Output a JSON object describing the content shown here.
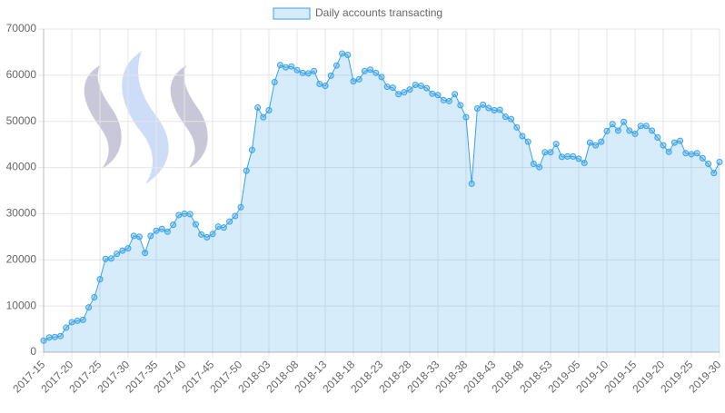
{
  "chart_data": {
    "type": "line",
    "categories": [
      "2017-15",
      null,
      null,
      null,
      null,
      "2017-20",
      null,
      null,
      null,
      null,
      "2017-25",
      null,
      null,
      null,
      null,
      "2017-30",
      null,
      null,
      null,
      null,
      "2017-35",
      null,
      null,
      null,
      null,
      "2017-40",
      null,
      null,
      null,
      null,
      "2017-45",
      null,
      null,
      null,
      null,
      "2017-50",
      null,
      null,
      null,
      null,
      "2018-03",
      null,
      null,
      null,
      null,
      "2018-08",
      null,
      null,
      null,
      null,
      "2018-13",
      null,
      null,
      null,
      null,
      "2018-18",
      null,
      null,
      null,
      null,
      "2018-23",
      null,
      null,
      null,
      null,
      "2018-28",
      null,
      null,
      null,
      null,
      "2018-33",
      null,
      null,
      null,
      null,
      "2018-38",
      null,
      null,
      null,
      null,
      "2018-43",
      null,
      null,
      null,
      null,
      "2018-48",
      null,
      null,
      null,
      null,
      "2018-53",
      null,
      null,
      null,
      null,
      "2019-05",
      null,
      null,
      null,
      null,
      "2019-10",
      null,
      null,
      null,
      null,
      "2019-15",
      null,
      null,
      null,
      null,
      "2019-20",
      null,
      null,
      null,
      null,
      "2019-25",
      null,
      null,
      null,
      null,
      "2019-30"
    ],
    "series": [
      {
        "name": "Daily accounts transacting",
        "color": "#36a2eb",
        "values": [
          2500,
          3200,
          3300,
          3500,
          5300,
          6500,
          6800,
          7000,
          9700,
          11900,
          15800,
          20200,
          20300,
          21300,
          22000,
          22500,
          25200,
          25000,
          21500,
          25200,
          26300,
          26700,
          26100,
          27600,
          29700,
          30000,
          29900,
          27700,
          25500,
          24900,
          25600,
          27200,
          27000,
          28300,
          29500,
          31400,
          39300,
          43800,
          53000,
          50900,
          52400,
          58500,
          62200,
          61700,
          61900,
          61100,
          60500,
          60400,
          60900,
          58100,
          57700,
          59900,
          62100,
          64700,
          64400,
          58700,
          59100,
          60900,
          61200,
          60500,
          59600,
          57500,
          57300,
          55900,
          56300,
          56900,
          57900,
          57700,
          57200,
          56000,
          55700,
          54600,
          54400,
          55900,
          53500,
          50900,
          36500,
          52800,
          53600,
          52900,
          52400,
          52500,
          51000,
          50500,
          48700,
          46800,
          45600,
          40800,
          40100,
          43300,
          43300,
          45100,
          42300,
          42400,
          42400,
          41900,
          41000,
          45400,
          44800,
          45600,
          47900,
          49400,
          48000,
          49900,
          48000,
          47300,
          49000,
          49000,
          48000,
          46500,
          44800,
          43400,
          45400,
          45800,
          43100,
          42900,
          43100,
          42000,
          40800,
          38800,
          41200
        ]
      }
    ],
    "ylim": [
      0,
      70000
    ],
    "yticks": [
      0,
      10000,
      20000,
      30000,
      40000,
      50000,
      60000,
      70000
    ],
    "grid": true,
    "legend": "top"
  }
}
